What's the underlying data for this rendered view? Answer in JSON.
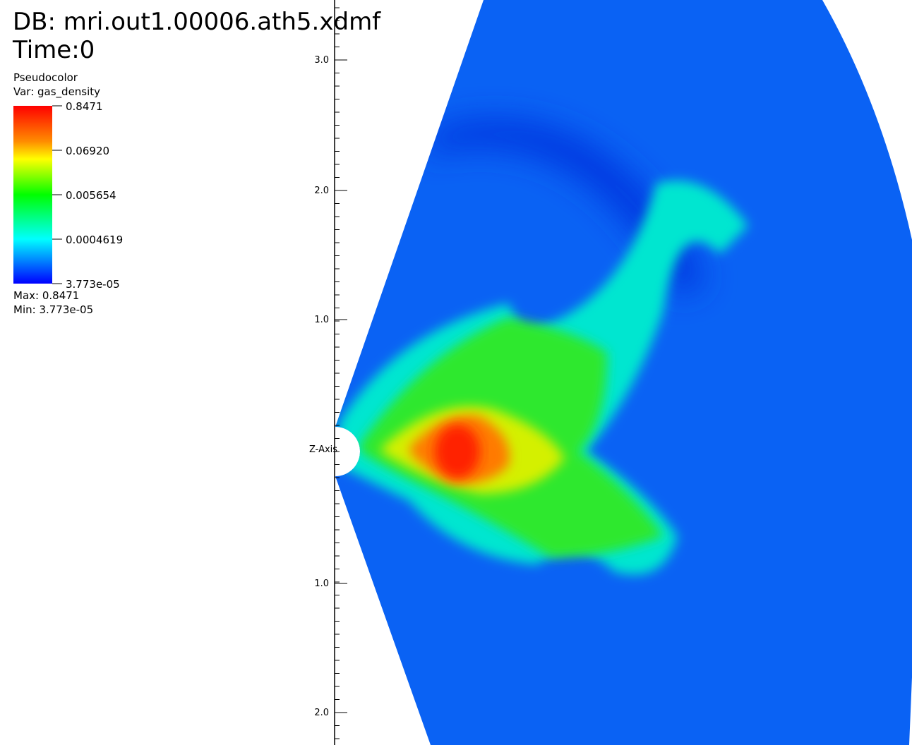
{
  "header": {
    "database": "DB: mri.out1.00006.ath5.xdmf",
    "time": "Time:0"
  },
  "legend": {
    "plot": "Pseudocolor",
    "variable": "Var: gas_density",
    "ticks": [
      "0.8471",
      "0.06920",
      "0.005654",
      "0.0004619",
      "3.773e-05"
    ],
    "max": "Max:  0.8471",
    "min": "Min:  3.773e-05"
  },
  "axis": {
    "title": "Z-Axis",
    "labels": [
      "3.0",
      "2.0",
      "1.0",
      "1.0",
      "2.0"
    ]
  }
}
